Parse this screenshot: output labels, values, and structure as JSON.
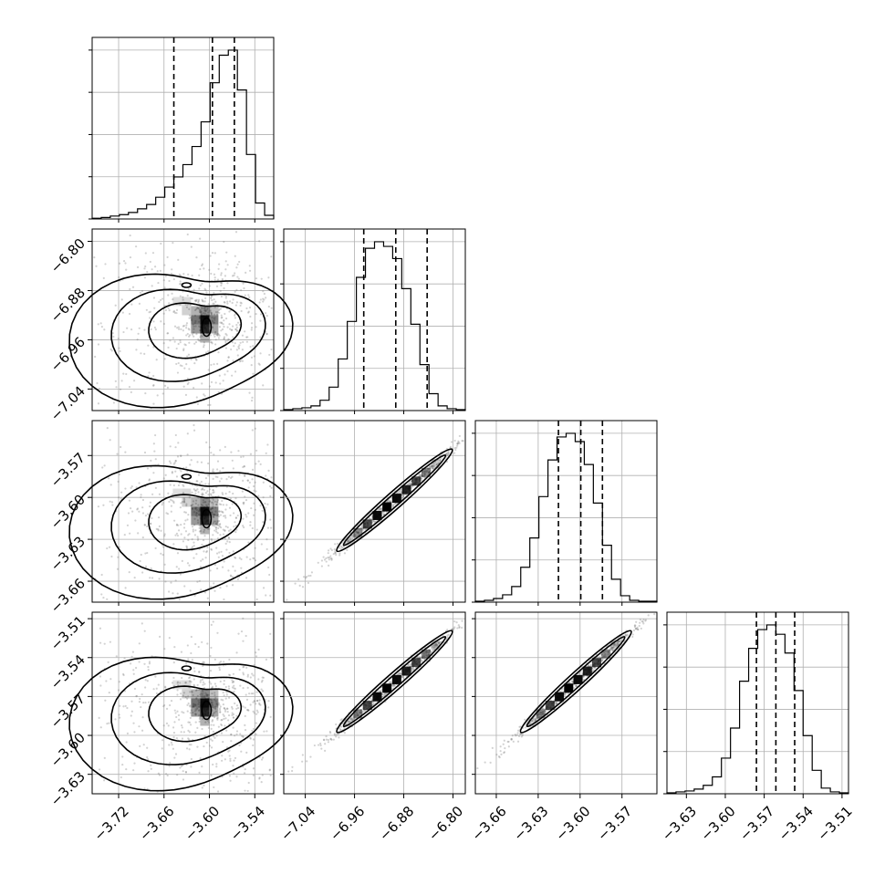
{
  "chart_data": {
    "type": "corner",
    "n_params": 4,
    "grid": true,
    "quantile_lines": "dashed",
    "params": [
      {
        "range": [
          -3.755,
          -3.515
        ],
        "ticks": [
          -3.72,
          -3.66,
          -3.6,
          -3.54
        ],
        "tick_labels": [
          "−3.72",
          "−3.66",
          "−3.60",
          "−3.54"
        ]
      },
      {
        "range": [
          -7.075,
          -6.78
        ],
        "ticks": [
          -7.04,
          -6.96,
          -6.88,
          -6.8
        ],
        "tick_labels": [
          "−7.04",
          "−6.96",
          "−6.88",
          "−6.80"
        ]
      },
      {
        "range": [
          -3.675,
          -3.545
        ],
        "ticks": [
          -3.66,
          -3.63,
          -3.6,
          -3.57
        ],
        "tick_labels": [
          "−3.66",
          "−3.63",
          "−3.60",
          "−3.57"
        ]
      },
      {
        "range": [
          -3.645,
          -3.505
        ],
        "ticks": [
          -3.63,
          -3.6,
          -3.57,
          -3.54,
          -3.51
        ],
        "tick_labels": [
          "−3.63",
          "−3.60",
          "−3.57",
          "−3.54",
          "−3.51"
        ]
      }
    ],
    "histograms": [
      {
        "counts": [
          1,
          2,
          4,
          6,
          9,
          14,
          20,
          30,
          44,
          58,
          75,
          100,
          134,
          188,
          226,
          233,
          178,
          89,
          22,
          5
        ],
        "quantiles": [
          -3.647,
          -3.596,
          -3.567
        ]
      },
      {
        "counts": [
          1,
          2,
          3,
          5,
          11,
          25,
          55,
          95,
          142,
          173,
          180,
          175,
          162,
          130,
          92,
          49,
          18,
          5,
          2,
          1
        ],
        "quantiles": [
          -6.945,
          -6.893,
          -6.842
        ]
      },
      {
        "counts": [
          1,
          2,
          4,
          8,
          17,
          38,
          70,
          115,
          155,
          180,
          184,
          175,
          150,
          108,
          62,
          25,
          7,
          2,
          1,
          1
        ],
        "quantiles": [
          -3.6155,
          -3.5995,
          -3.584
        ]
      },
      {
        "counts": [
          1,
          2,
          3,
          5,
          9,
          18,
          38,
          70,
          120,
          155,
          175,
          180,
          170,
          150,
          110,
          62,
          25,
          6,
          2,
          1
        ],
        "quantiles": [
          -3.576,
          -3.561,
          -3.5465
        ]
      }
    ],
    "pairs": [
      {
        "row": 1,
        "col": 0,
        "shape": "banana",
        "mode": [
          -3.585,
          -6.925
        ]
      },
      {
        "row": 2,
        "col": 0,
        "shape": "banana",
        "mode": [
          -3.585,
          -3.611
        ]
      },
      {
        "row": 2,
        "col": 1,
        "shape": "linear",
        "from": [
          -6.985,
          -3.637
        ],
        "to": [
          -6.805,
          -3.567
        ]
      },
      {
        "row": 3,
        "col": 0,
        "shape": "banana",
        "mode": [
          -3.585,
          -3.566
        ]
      },
      {
        "row": 3,
        "col": 1,
        "shape": "linear",
        "from": [
          -6.985,
          -3.596
        ],
        "to": [
          -6.805,
          -3.521
        ]
      },
      {
        "row": 3,
        "col": 2,
        "shape": "linear",
        "from": [
          -3.641,
          -3.596
        ],
        "to": [
          -3.565,
          -3.521
        ]
      }
    ],
    "colors": {
      "axes": "#000000",
      "grid": "#b0b0b0",
      "density": "#000000",
      "samples": "#7f7f7f"
    }
  }
}
